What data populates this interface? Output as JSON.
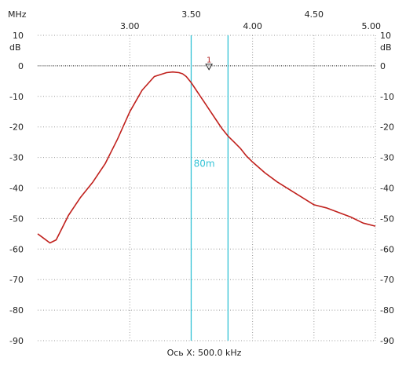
{
  "chart_data": {
    "type": "line",
    "x_unit": "MHz",
    "y_unit": "dB",
    "xlabel": "Ось X: 500.0 kHz",
    "xlim": [
      2.25,
      5.0
    ],
    "ylim": [
      -90,
      10
    ],
    "x_ticks": [
      3.0,
      3.5,
      4.0,
      4.5,
      5.0
    ],
    "x_tick_labels": [
      "3.00",
      "3.50",
      "4.00",
      "4.50",
      "5.00"
    ],
    "y_ticks": [
      10,
      0,
      -10,
      -20,
      -30,
      -40,
      -50,
      -60,
      -70,
      -80,
      -90
    ],
    "y_tick_labels": [
      "10",
      "0",
      "-10",
      "-20",
      "-30",
      "-40",
      "-50",
      "-60",
      "-70",
      "-80",
      "-90"
    ],
    "grid": "dotted",
    "series": [
      {
        "color": "#c0201c",
        "x": [
          2.25,
          2.3,
          2.35,
          2.4,
          2.45,
          2.5,
          2.55,
          2.6,
          2.7,
          2.8,
          2.9,
          3.0,
          3.1,
          3.2,
          3.3,
          3.35,
          3.4,
          3.43,
          3.46,
          3.5,
          3.55,
          3.6,
          3.65,
          3.7,
          3.75,
          3.8,
          3.85,
          3.9,
          3.95,
          4.0,
          4.1,
          4.2,
          4.3,
          4.4,
          4.5,
          4.6,
          4.7,
          4.8,
          4.9,
          5.0
        ],
        "y": [
          -55,
          -56.5,
          -58,
          -57,
          -53,
          -49,
          -46,
          -43,
          -38,
          -32,
          -24,
          -15,
          -8,
          -3.5,
          -2.2,
          -2.0,
          -2.2,
          -2.6,
          -3.5,
          -5.5,
          -8.5,
          -11.5,
          -14.5,
          -17.5,
          -20.5,
          -23,
          -25,
          -27,
          -29.5,
          -31.5,
          -35,
          -38,
          -40.5,
          -43,
          -45.5,
          -46.5,
          -48.0,
          -49.5,
          -51.5,
          -52.5
        ]
      }
    ],
    "vlines": [
      {
        "x": 3.5,
        "color": "#35c3d6"
      },
      {
        "x": 3.8,
        "color": "#35c3d6"
      }
    ],
    "band_label": {
      "text": "80m",
      "x": 3.52,
      "y": -33
    },
    "marker": {
      "label": "1",
      "x": 3.645,
      "y": -1.5
    }
  }
}
